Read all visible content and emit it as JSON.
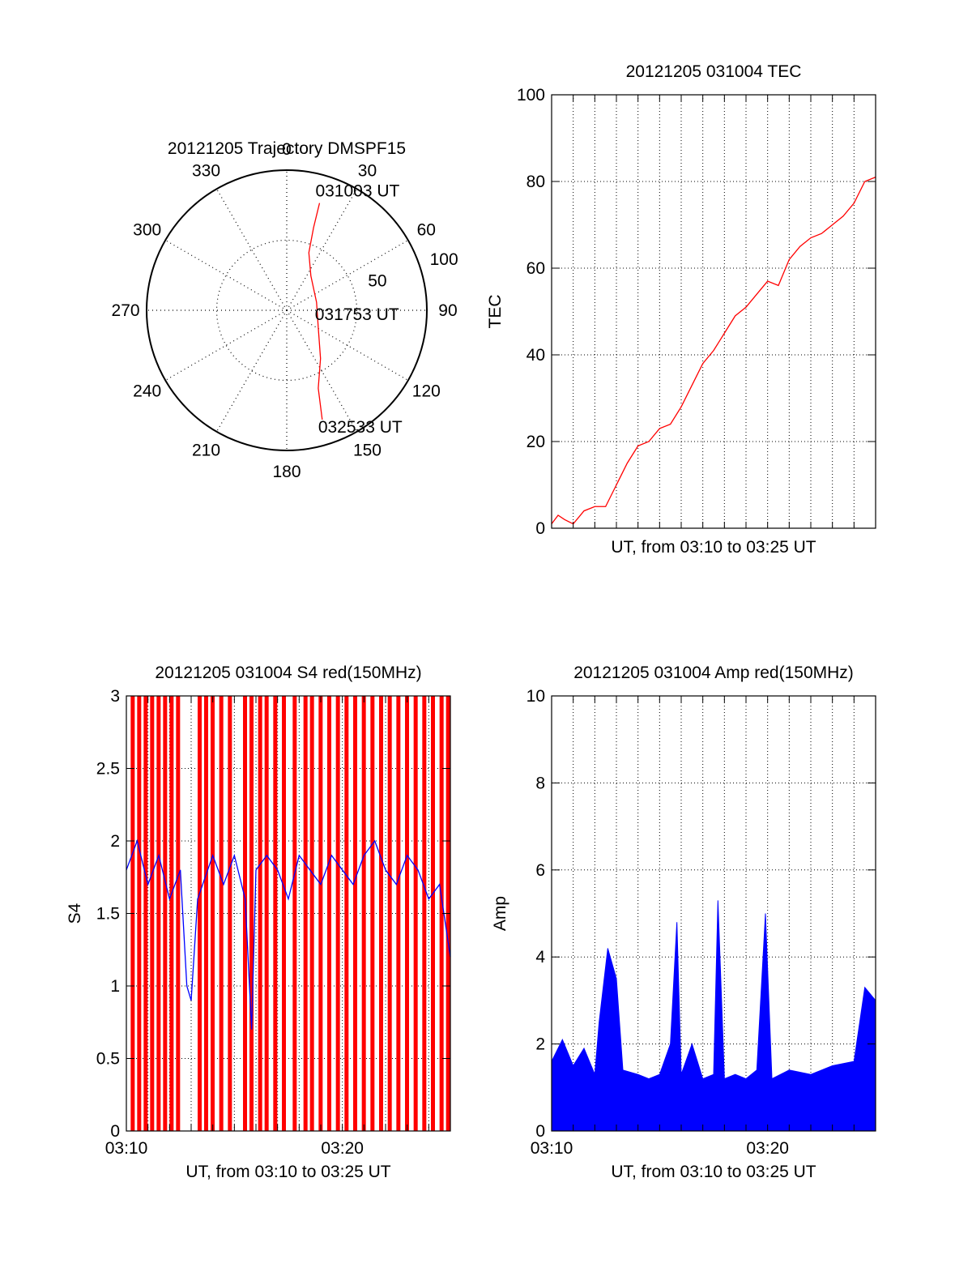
{
  "colors": {
    "primary": "#ff0000",
    "secondary": "#0000ff",
    "grid": "#000000",
    "background": "#ffffff"
  },
  "chart_data": [
    {
      "id": "polar",
      "type": "line",
      "projection": "polar",
      "title": "20121205 Trajectory DMSPF15",
      "angle_labels": [
        "0",
        "30",
        "60",
        "90",
        "120",
        "150",
        "180",
        "210",
        "240",
        "270",
        "300",
        "330"
      ],
      "radial_labels": [
        "50",
        "100"
      ],
      "radial_range": [
        0,
        100
      ],
      "grid": true,
      "series": [
        {
          "color": "#ff0000",
          "points": [
            {
              "az": 17,
              "r": 80
            },
            {
              "az": 18,
              "r": 62
            },
            {
              "az": 21,
              "r": 44
            },
            {
              "az": 35,
              "r": 30
            },
            {
              "az": 75,
              "r": 22
            },
            {
              "az": 120,
              "r": 26
            },
            {
              "az": 145,
              "r": 42
            },
            {
              "az": 158,
              "r": 60
            },
            {
              "az": 162,
              "r": 82
            }
          ]
        }
      ],
      "annotations": [
        "031003 UT",
        "031753 UT",
        "032533 UT"
      ]
    },
    {
      "id": "tec",
      "type": "line",
      "title": "20121205 031004 TEC",
      "xlabel": "UT, from 03:10 to 03:25 UT",
      "ylabel": "TEC",
      "xlim": [
        0,
        15
      ],
      "ylim": [
        0,
        100
      ],
      "yticks": [
        "0",
        "20",
        "40",
        "60",
        "80",
        "100"
      ],
      "grid": true,
      "series": [
        {
          "color": "#ff0000",
          "x": [
            0,
            0.3,
            0.6,
            1.0,
            1.5,
            2.0,
            2.5,
            3.0,
            3.5,
            4.0,
            4.5,
            5.0,
            5.5,
            6.0,
            6.5,
            7.0,
            7.5,
            8.0,
            8.5,
            9.0,
            9.5,
            10.0,
            10.5,
            11.0,
            11.5,
            12.0,
            12.5,
            13.0,
            13.5,
            14.0,
            14.5,
            15.0
          ],
          "y": [
            1,
            3,
            2,
            1,
            4,
            5,
            5,
            10,
            15,
            19,
            20,
            23,
            24,
            28,
            33,
            38,
            41,
            45,
            49,
            51,
            54,
            57,
            56,
            62,
            65,
            67,
            68,
            70,
            72,
            75,
            80,
            81
          ]
        }
      ]
    },
    {
      "id": "s4",
      "type": "bar",
      "title": "20121205 031004 S4 red(150MHz)",
      "xlabel": "UT, from 03:10 to 03:25 UT",
      "ylabel": "S4",
      "xlim": [
        0,
        15
      ],
      "ylim": [
        0,
        3
      ],
      "xticks": [
        "03:10",
        "03:20"
      ],
      "yticks": [
        "0",
        "0.5",
        "1",
        "1.5",
        "2",
        "2.5",
        "3"
      ],
      "grid": true,
      "series": [
        {
          "color": "#ff0000",
          "kind": "bars",
          "x": [
            0.2,
            0.5,
            0.8,
            1.1,
            1.4,
            1.7,
            2.0,
            2.3,
            3.3,
            3.6,
            3.9,
            4.3,
            4.7,
            5.4,
            5.7,
            6.1,
            6.4,
            6.8,
            7.2,
            7.7,
            8.2,
            8.5,
            8.9,
            9.3,
            9.7,
            10.1,
            10.5,
            10.9,
            11.3,
            11.7,
            12.1,
            12.5,
            12.9,
            13.3,
            13.7,
            14.1,
            14.5,
            14.8
          ],
          "y": [
            3,
            3,
            3,
            3,
            3,
            3,
            3,
            3,
            3,
            3,
            3,
            3,
            3,
            3,
            3,
            3,
            3,
            3,
            3,
            3,
            3,
            3,
            3,
            3,
            3,
            3,
            3,
            3,
            3,
            3,
            3,
            3,
            3,
            3,
            3,
            3,
            3,
            3
          ]
        },
        {
          "color": "#0000ff",
          "kind": "line",
          "x": [
            0,
            0.5,
            1.0,
            1.5,
            2.0,
            2.5,
            2.8,
            3.0,
            3.3,
            4.0,
            4.5,
            5.0,
            5.5,
            5.8,
            6.0,
            6.5,
            7.0,
            7.5,
            8.0,
            8.5,
            9.0,
            9.5,
            10.0,
            10.5,
            11.0,
            11.5,
            12.0,
            12.5,
            13.0,
            13.5,
            14.0,
            14.5,
            15.0
          ],
          "y": [
            1.8,
            2.0,
            1.7,
            1.9,
            1.6,
            1.8,
            1.0,
            0.9,
            1.6,
            1.9,
            1.7,
            1.9,
            1.6,
            0.7,
            1.8,
            1.9,
            1.8,
            1.6,
            1.9,
            1.8,
            1.7,
            1.9,
            1.8,
            1.7,
            1.9,
            2.0,
            1.8,
            1.7,
            1.9,
            1.8,
            1.6,
            1.7,
            1.2
          ]
        }
      ]
    },
    {
      "id": "amp",
      "type": "area",
      "title": "20121205 031004 Amp red(150MHz)",
      "xlabel": "UT, from 03:10 to 03:25 UT",
      "ylabel": "Amp",
      "xlim": [
        0,
        15
      ],
      "ylim": [
        0,
        10
      ],
      "xticks": [
        "03:10",
        "03:20"
      ],
      "yticks": [
        "0",
        "2",
        "4",
        "6",
        "8",
        "10"
      ],
      "grid": true,
      "series": [
        {
          "color": "#0000ff",
          "x": [
            0,
            0.5,
            1.0,
            1.5,
            2.0,
            2.2,
            2.6,
            3.0,
            3.3,
            4.0,
            4.5,
            5.0,
            5.5,
            5.8,
            6.0,
            6.5,
            7.0,
            7.5,
            7.7,
            8.0,
            8.5,
            9.0,
            9.5,
            9.9,
            10.2,
            11.0,
            12.0,
            13.0,
            14.0,
            14.5,
            15.0
          ],
          "y": [
            1.6,
            2.1,
            1.5,
            1.9,
            1.3,
            2.5,
            4.2,
            3.5,
            1.4,
            1.3,
            1.2,
            1.3,
            2.0,
            4.8,
            1.3,
            2.0,
            1.2,
            1.3,
            5.3,
            1.2,
            1.3,
            1.2,
            1.4,
            5.0,
            1.2,
            1.4,
            1.3,
            1.5,
            1.6,
            3.3,
            3.0
          ]
        }
      ]
    }
  ]
}
